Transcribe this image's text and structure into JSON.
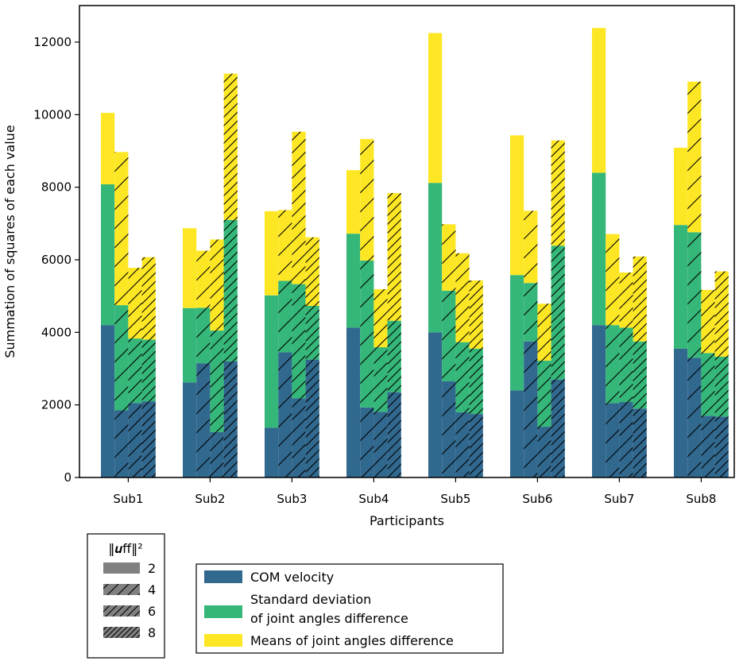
{
  "chart_data": {
    "type": "bar",
    "stacked": true,
    "grouped": true,
    "xlabel": "Participants",
    "ylabel": "Summation of squares of each value",
    "ylim": [
      0,
      13000
    ],
    "yticks": [
      0,
      2000,
      4000,
      6000,
      8000,
      10000,
      12000
    ],
    "categories": [
      "Sub1",
      "Sub2",
      "Sub3",
      "Sub4",
      "Sub5",
      "Sub6",
      "Sub7",
      "Sub8"
    ],
    "group_by": "||u_ff||^2",
    "groups": [
      "2",
      "4",
      "6",
      "8"
    ],
    "series": [
      {
        "name": "COM velocity",
        "color": "#31688e",
        "values": [
          [
            4200,
            1850,
            2050,
            2100
          ],
          [
            2620,
            3150,
            1250,
            3200
          ],
          [
            1370,
            3450,
            2180,
            3250
          ],
          [
            4130,
            1930,
            1810,
            2350
          ],
          [
            4000,
            2650,
            1800,
            1750
          ],
          [
            2400,
            3750,
            1400,
            2700
          ],
          [
            4200,
            2050,
            2080,
            1900
          ],
          [
            3550,
            3300,
            1700,
            1680
          ]
        ]
      },
      {
        "name": "Standard deviation\nof joint angles difference",
        "color": "#35b779",
        "values": [
          [
            3880,
            2900,
            1780,
            1700
          ],
          [
            2050,
            1530,
            2800,
            3900
          ],
          [
            3650,
            1970,
            3150,
            1480
          ],
          [
            2590,
            4050,
            1780,
            1970
          ],
          [
            4120,
            2500,
            1930,
            1800
          ],
          [
            3180,
            1610,
            1820,
            3690
          ],
          [
            4200,
            2150,
            2050,
            1850
          ],
          [
            3410,
            3460,
            1730,
            1650
          ]
        ]
      },
      {
        "name": "Means of joint angles difference",
        "color": "#fde725",
        "values": [
          [
            1970,
            4220,
            1950,
            2270
          ],
          [
            2200,
            1570,
            2510,
            4030
          ],
          [
            2320,
            1950,
            4200,
            1890
          ],
          [
            1750,
            3350,
            1600,
            3520
          ],
          [
            4130,
            1830,
            2450,
            1880
          ],
          [
            3850,
            1990,
            1570,
            2900
          ],
          [
            3990,
            2510,
            1520,
            2340
          ],
          [
            2130,
            4150,
            1740,
            2350
          ]
        ]
      }
    ],
    "legend": {
      "title": "||u_ff||^2",
      "title_rendered": "‖𝒖ff‖²",
      "group_labels": [
        "2",
        "4",
        "6",
        "8"
      ],
      "series_labels": [
        "COM velocity",
        "Standard deviation",
        "of joint angles difference",
        "Means of joint angles difference"
      ],
      "position": "below"
    }
  }
}
